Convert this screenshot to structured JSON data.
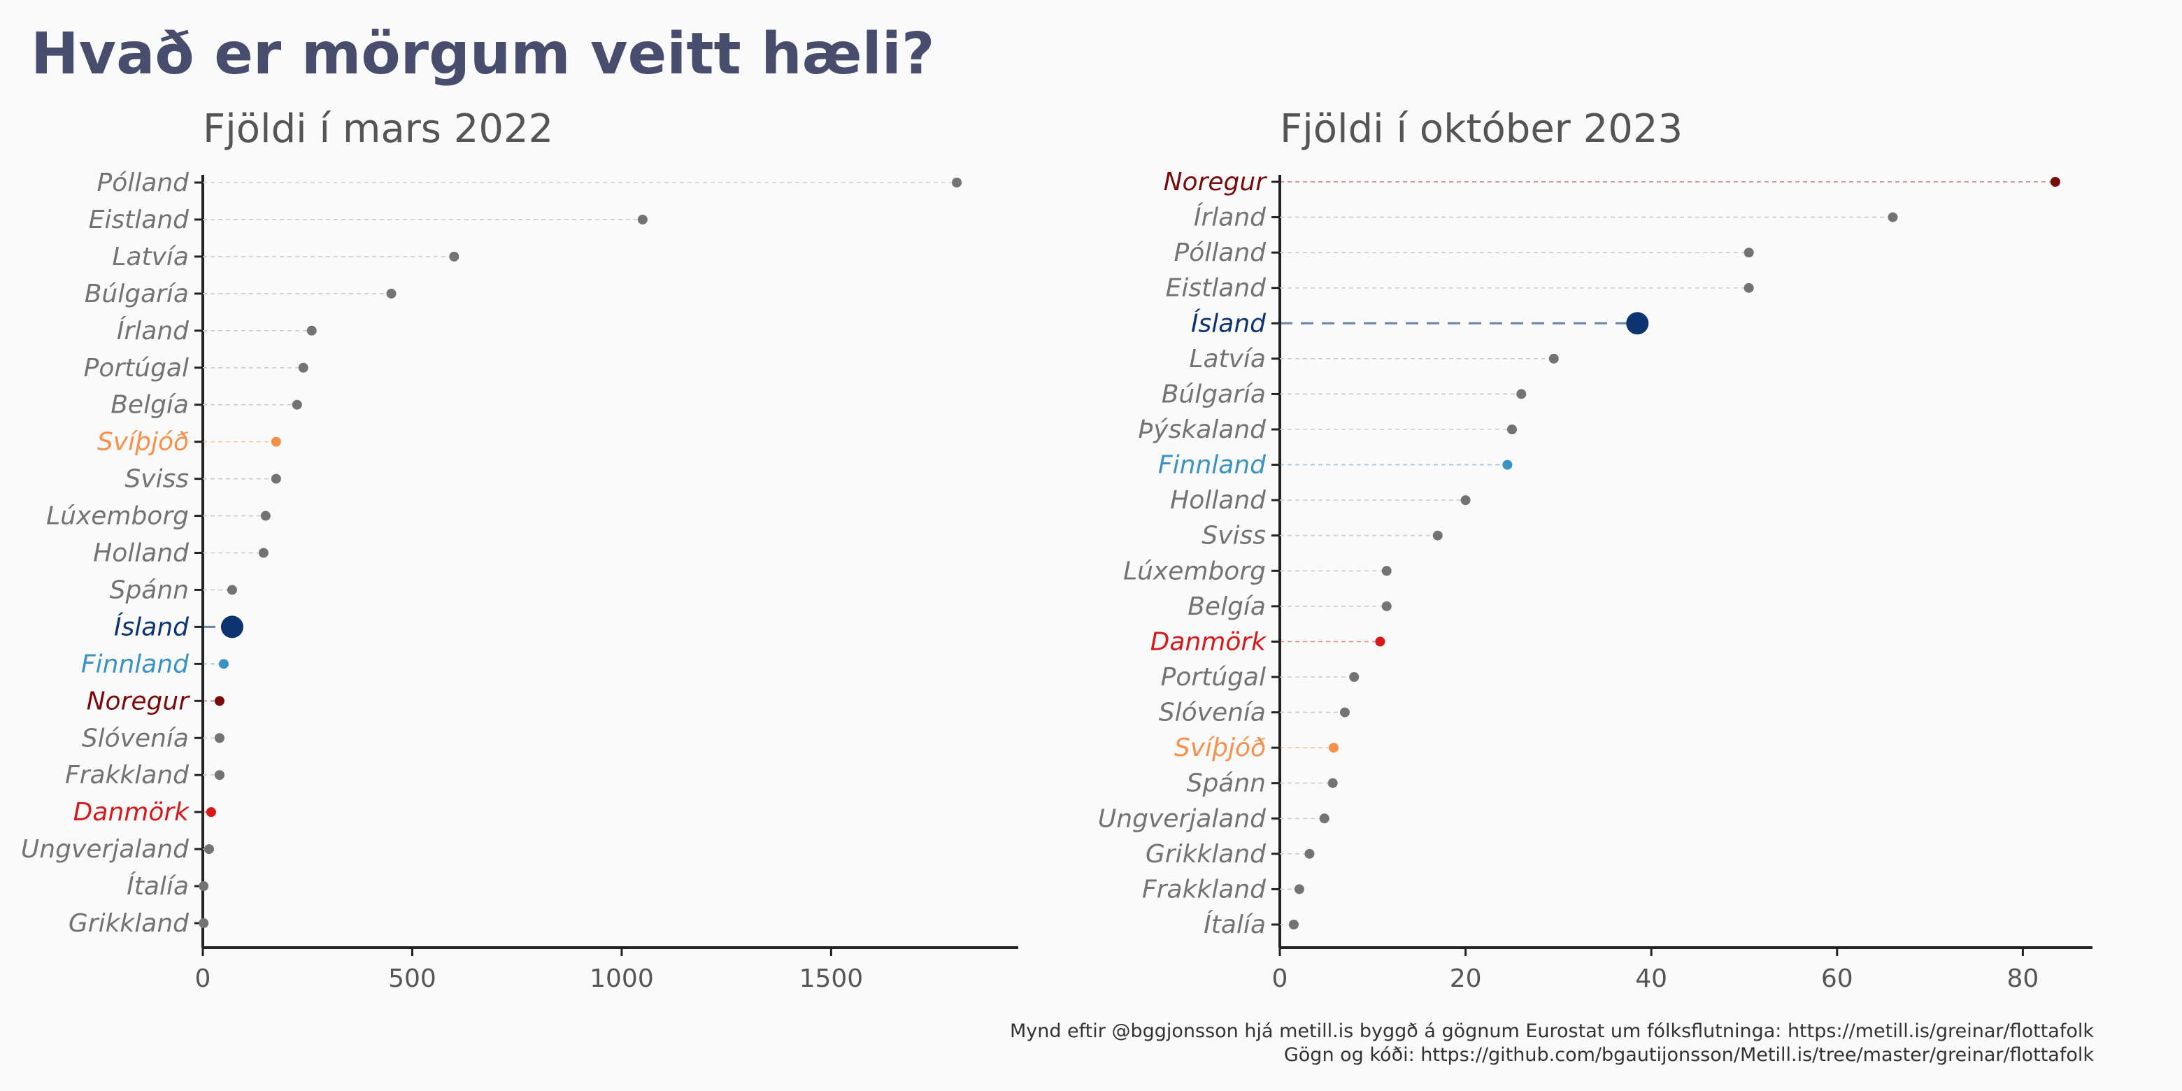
{
  "title": "Hvað er mörgum veitt hæli?",
  "colors": {
    "background": "#fafafa",
    "title": "#484d6d",
    "default_point": "#737373",
    "default_label": "#737373",
    "default_line": "#cccccc",
    "axis": "#222222"
  },
  "chart_data": [
    {
      "type": "dot",
      "title": "Fjöldi í mars 2022",
      "xlabel": "",
      "ylabel": "",
      "xlim": [
        0,
        1880
      ],
      "x_ticks": [
        0,
        500,
        1000,
        1500
      ],
      "grid": false,
      "categories": [
        "Pólland",
        "Eistland",
        "Latvía",
        "Búlgaría",
        "Írland",
        "Portúgal",
        "Belgía",
        "Svíþjóð",
        "Sviss",
        "Lúxemborg",
        "Holland",
        "Spánn",
        "Ísland",
        "Finnland",
        "Noregur",
        "Slóvenía",
        "Frakkland",
        "Danmörk",
        "Ungverjaland",
        "Ítalía",
        "Grikkland"
      ],
      "values": [
        1800,
        1050,
        600,
        450,
        260,
        240,
        225,
        175,
        175,
        150,
        145,
        70,
        70,
        50,
        40,
        40,
        40,
        20,
        15,
        2,
        2
      ]
    },
    {
      "type": "dot",
      "title": "Fjöldi í október 2023",
      "xlabel": "",
      "ylabel": "",
      "xlim": [
        0,
        87.5
      ],
      "x_ticks": [
        0,
        20,
        40,
        60,
        80
      ],
      "grid": false,
      "categories": [
        "Noregur",
        "Írland",
        "Pólland",
        "Eistland",
        "Ísland",
        "Latvía",
        "Búlgaría",
        "Þýskaland",
        "Finnland",
        "Holland",
        "Sviss",
        "Lúxemborg",
        "Belgía",
        "Danmörk",
        "Portúgal",
        "Slóvenía",
        "Svíþjóð",
        "Spánn",
        "Ungverjaland",
        "Grikkland",
        "Frakkland",
        "Ítalía"
      ],
      "values": [
        83.5,
        66,
        50.5,
        50.5,
        38.5,
        29.5,
        26,
        25,
        24.5,
        20,
        17,
        11.5,
        11.5,
        10.8,
        8,
        7,
        5.8,
        5.7,
        4.8,
        3.2,
        2.1,
        1.5
      ]
    }
  ],
  "highlights": [
    {
      "name": "Ísland",
      "color": "#0d3370"
    },
    {
      "name": "Noregur",
      "color": "#7a0b0b"
    },
    {
      "name": "Finnland",
      "color": "#3b93c3"
    },
    {
      "name": "Svíþjóð",
      "color": "#f7904a"
    },
    {
      "name": "Danmörk",
      "color": "#d7191c"
    }
  ],
  "caption": {
    "line1": "Mynd eftir @bggjonsson hjá metill.is byggð á gögnum Eurostat um fólksflutninga: https://metill.is/greinar/flottafolk",
    "line2": "Gögn og kóði: https://github.com/bgautijonsson/Metill.is/tree/master/greinar/flottafolk"
  }
}
